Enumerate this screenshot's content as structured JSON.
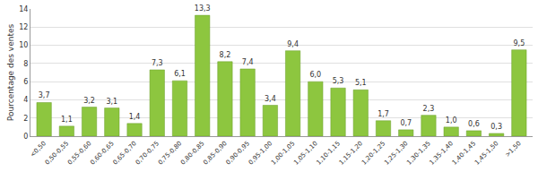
{
  "chart_data": {
    "type": "bar",
    "y_label": "Pourcentage des ventes",
    "categories": [
      "<0,50",
      "0,50-0,55",
      "0,55-0,60",
      "0,60-0,65",
      "0,65-0,70",
      "0,70-0,75",
      "0,75-0,80",
      "0,80-0,85",
      "0,85-0,90",
      "0,90-0,95",
      "0,95-1,00",
      "1,00-1,05",
      "1,05-1,10",
      "1,10-1,15",
      "1,15-1,20",
      "1,20-1,25",
      "1,25-1,30",
      "1,30-1,35",
      "1,35-1,40",
      "1,40-1,45",
      "1,45-1,50",
      ">1,50"
    ],
    "values": [
      3.7,
      1.1,
      3.2,
      3.1,
      1.4,
      7.3,
      6.1,
      13.3,
      8.2,
      7.4,
      3.4,
      9.4,
      6.0,
      5.3,
      5.1,
      1.7,
      0.7,
      2.3,
      1.0,
      0.6,
      0.3,
      9.5
    ],
    "value_labels": [
      "3,7",
      "1,1",
      "3,2",
      "3,1",
      "1,4",
      "7,3",
      "6,1",
      "13,3",
      "8,2",
      "7,4",
      "3,4",
      "9,4",
      "6,0",
      "5,3",
      "5,1",
      "1,7",
      "0,7",
      "2,3",
      "1,0",
      "0,6",
      "0,3",
      "9,5"
    ],
    "color": "#8dc63f",
    "ylim": [
      0,
      14
    ],
    "yticks": [
      0,
      2,
      4,
      6,
      8,
      10,
      12,
      14
    ],
    "grid": true,
    "data_labels": true
  }
}
